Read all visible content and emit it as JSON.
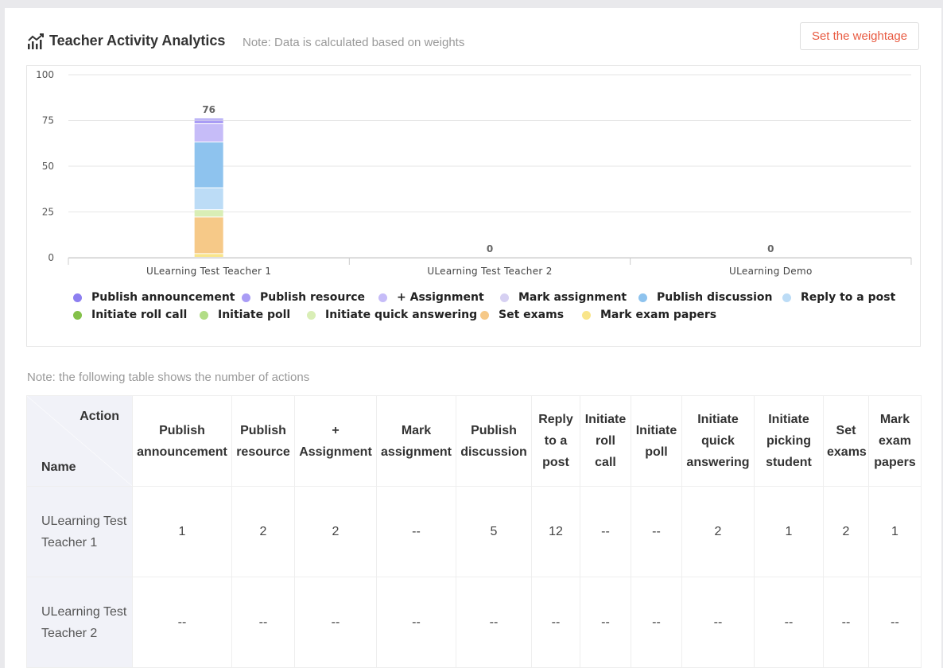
{
  "header": {
    "title": "Teacher Activity Analytics",
    "note": "Note: Data is calculated based on weights",
    "weight_button": "Set the weightage"
  },
  "chart_data": {
    "type": "bar",
    "stacked": true,
    "categories": [
      "ULearning Test Teacher 1",
      "ULearning Test Teacher 2",
      "ULearning Demo"
    ],
    "totals": [
      76,
      0,
      0
    ],
    "ylim": [
      0,
      100
    ],
    "yticks": [
      0,
      25,
      50,
      75,
      100
    ],
    "grid": true,
    "legend_position": "bottom",
    "series": [
      {
        "name": "Publish announcement",
        "color": "#8d7ff0",
        "values": [
          1,
          0,
          0
        ]
      },
      {
        "name": "Publish resource",
        "color": "#a99cf5",
        "values": [
          2,
          0,
          0
        ]
      },
      {
        "name": "+ Assignment",
        "color": "#c6bcf8",
        "values": [
          10,
          0,
          0
        ]
      },
      {
        "name": "Mark assignment",
        "color": "#d6d0f2",
        "values": [
          0,
          0,
          0
        ]
      },
      {
        "name": "Publish discussion",
        "color": "#8ec3ee",
        "values": [
          25,
          0,
          0
        ]
      },
      {
        "name": "Reply to a post",
        "color": "#bcdcf6",
        "values": [
          12,
          0,
          0
        ]
      },
      {
        "name": "Initiate roll call",
        "color": "#84c14a",
        "values": [
          0,
          0,
          0
        ]
      },
      {
        "name": "Initiate poll",
        "color": "#b2dd86",
        "values": [
          0,
          0,
          0
        ]
      },
      {
        "name": "Initiate quick answering",
        "color": "#d9eeb6",
        "values": [
          4,
          0,
          0
        ]
      },
      {
        "name": "Set exams",
        "color": "#f6c988",
        "values": [
          20,
          0,
          0
        ]
      },
      {
        "name": "Mark exam papers",
        "color": "#f9e58a",
        "values": [
          2,
          0,
          0
        ]
      }
    ]
  },
  "table": {
    "note": "Note: the following table shows the number of actions",
    "corner_action": "Action",
    "corner_name": "Name",
    "columns": [
      "Publish announcement",
      "Publish resource",
      "+ Assignment",
      "Mark assignment",
      "Publish discussion",
      "Reply to a post",
      "Initiate roll call",
      "Initiate poll",
      "Initiate quick answering",
      "Initiate picking student",
      "Set exams",
      "Mark exam papers"
    ],
    "rows": [
      {
        "name": "ULearning Test Teacher 1",
        "values": [
          "1",
          "2",
          "2",
          "--",
          "5",
          "12",
          "--",
          "--",
          "2",
          "1",
          "2",
          "1"
        ]
      },
      {
        "name": "ULearning Test Teacher 2",
        "values": [
          "--",
          "--",
          "--",
          "--",
          "--",
          "--",
          "--",
          "--",
          "--",
          "--",
          "--",
          "--"
        ]
      }
    ]
  }
}
